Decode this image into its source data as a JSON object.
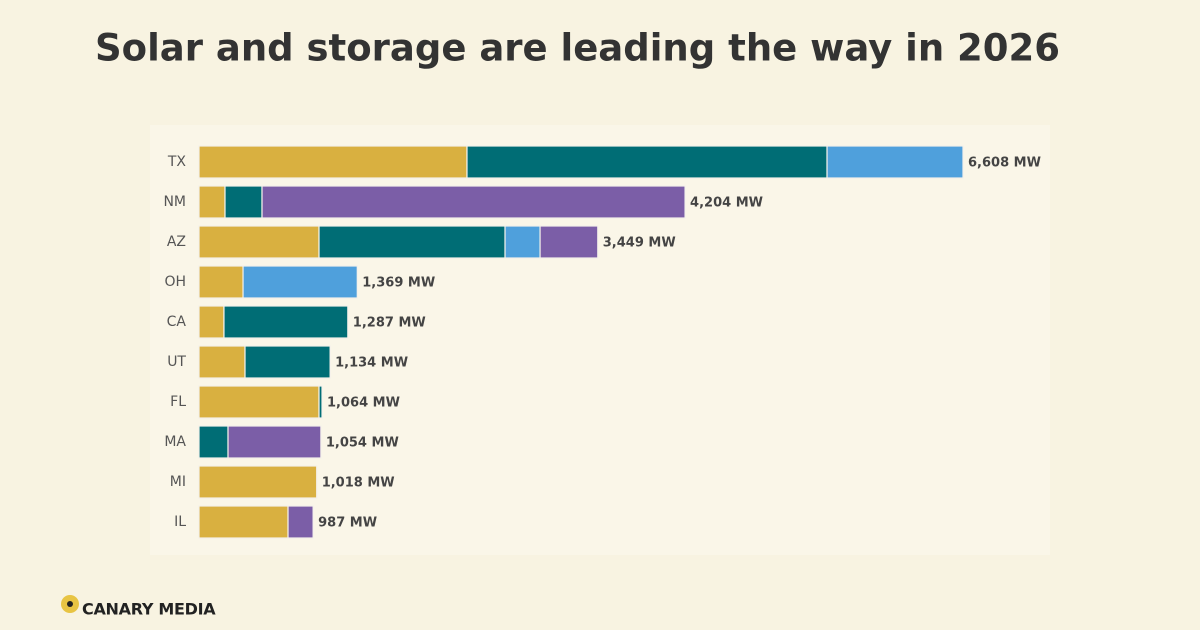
{
  "title": "Solar and storage are leading the way in 2026",
  "brand": "CANARY MEDIA",
  "chart_data": {
    "type": "stacked-bar-horizontal",
    "categories": [
      "TX",
      "NM",
      "AZ",
      "OH",
      "CA",
      "UT",
      "FL",
      "MA",
      "MI",
      "IL"
    ],
    "series": [
      {
        "color": "#d9b040",
        "values": [
          2318,
          225,
          1038,
          381,
          216,
          398,
          1038,
          0,
          1018,
          770
        ]
      },
      {
        "color": "#006d75",
        "values": [
          3114,
          320,
          1609,
          0,
          1071,
          736,
          26,
          251,
          0,
          0
        ]
      },
      {
        "color": "#4fa0dc",
        "values": [
          1176,
          0,
          303,
          988,
          0,
          0,
          0,
          0,
          0,
          0
        ]
      },
      {
        "color": "#7b5ea7",
        "values": [
          0,
          3659,
          499,
          0,
          0,
          0,
          0,
          803,
          0,
          217
        ]
      }
    ],
    "totals": [
      6608,
      4204,
      3449,
      1369,
      1287,
      1134,
      1064,
      1054,
      1018,
      987
    ],
    "total_labels": [
      "6,608 MW",
      "4,204 MW",
      "3,449 MW",
      "1,369 MW",
      "1,287 MW",
      "1,134 MW",
      "1,064 MW",
      "1,054 MW",
      "1,018 MW",
      "987 MW"
    ]
  }
}
